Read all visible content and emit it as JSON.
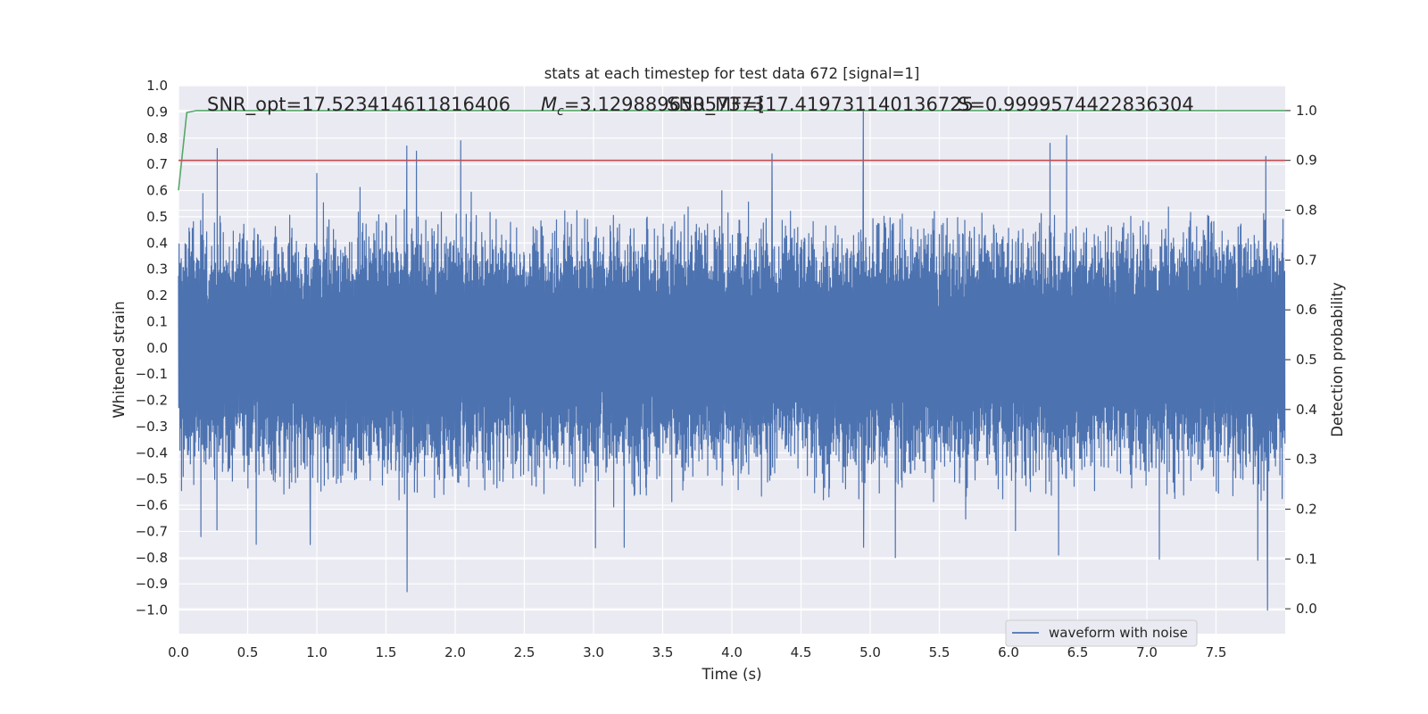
{
  "chart_data": {
    "type": "line",
    "title": "stats at each timestep for test data 672 [signal=1]",
    "xlabel": "Time (s)",
    "ylabel": "Whitened strain",
    "y2label": "Detection probability",
    "xlim": [
      0.0,
      8.0
    ],
    "ylim": [
      -1.09,
      1.0
    ],
    "y2lim": [
      -0.05,
      1.05
    ],
    "xticks": [
      "0.0",
      "0.5",
      "1.0",
      "1.5",
      "2.0",
      "2.5",
      "3.0",
      "3.5",
      "4.0",
      "4.5",
      "5.0",
      "5.5",
      "6.0",
      "6.5",
      "7.0",
      "7.5"
    ],
    "yticks": [
      "1.0",
      "0.9",
      "0.8",
      "0.7",
      "0.6",
      "0.5",
      "0.4",
      "0.3",
      "0.2",
      "0.1",
      "0.0",
      "−0.1",
      "−0.2",
      "−0.3",
      "−0.4",
      "−0.5",
      "−0.6",
      "−0.7",
      "−0.8",
      "−0.9",
      "−1.0"
    ],
    "y2ticks": [
      "1.0",
      "0.9",
      "0.8",
      "0.7",
      "0.6",
      "0.5",
      "0.4",
      "0.3",
      "0.2",
      "0.1",
      "0.0"
    ],
    "grid": true,
    "legend_position": "lower-right",
    "annotations": {
      "snr_opt": "SNR_opt=17.523414611816406",
      "mc": "=3.12988965057373",
      "mc_symbol": "M",
      "mc_sub": "c",
      "snr_mf": "SNR_MF=[17.419731140136725",
      "s": "S=0.9999574422836304"
    },
    "series": [
      {
        "name": "waveform with noise",
        "color": "#4c72b0",
        "kind": "strain",
        "envelope_positive_typical": [
          0.25,
          0.45
        ],
        "envelope_negative_typical": [
          -0.25,
          -0.5
        ],
        "positive_peaks": [
          {
            "x": 0.28,
            "y": 0.76
          },
          {
            "x": 1.65,
            "y": 0.77
          },
          {
            "x": 1.72,
            "y": 0.75
          },
          {
            "x": 2.04,
            "y": 0.79
          },
          {
            "x": 4.29,
            "y": 0.74
          },
          {
            "x": 4.95,
            "y": 0.91
          },
          {
            "x": 6.3,
            "y": 0.78
          },
          {
            "x": 6.42,
            "y": 0.81
          },
          {
            "x": 7.86,
            "y": 0.73
          }
        ],
        "negative_peaks": [
          {
            "x": 0.16,
            "y": -0.72
          },
          {
            "x": 0.95,
            "y": -0.75
          },
          {
            "x": 1.65,
            "y": -0.93
          },
          {
            "x": 3.22,
            "y": -0.76
          },
          {
            "x": 4.95,
            "y": -0.76
          },
          {
            "x": 5.18,
            "y": -0.8
          },
          {
            "x": 6.36,
            "y": -0.79
          },
          {
            "x": 7.8,
            "y": -0.81
          },
          {
            "x": 7.87,
            "y": -1.0
          }
        ]
      },
      {
        "name": "",
        "color": "#55a868",
        "axis": "right",
        "x": [
          0.0,
          0.06,
          0.13,
          8.0
        ],
        "y": [
          0.84,
          0.996,
          1.0,
          1.0
        ]
      },
      {
        "name": "",
        "color": "#c44e52",
        "axis": "right",
        "x": [
          0.0,
          8.0
        ],
        "y": [
          0.9,
          0.9
        ]
      }
    ]
  }
}
